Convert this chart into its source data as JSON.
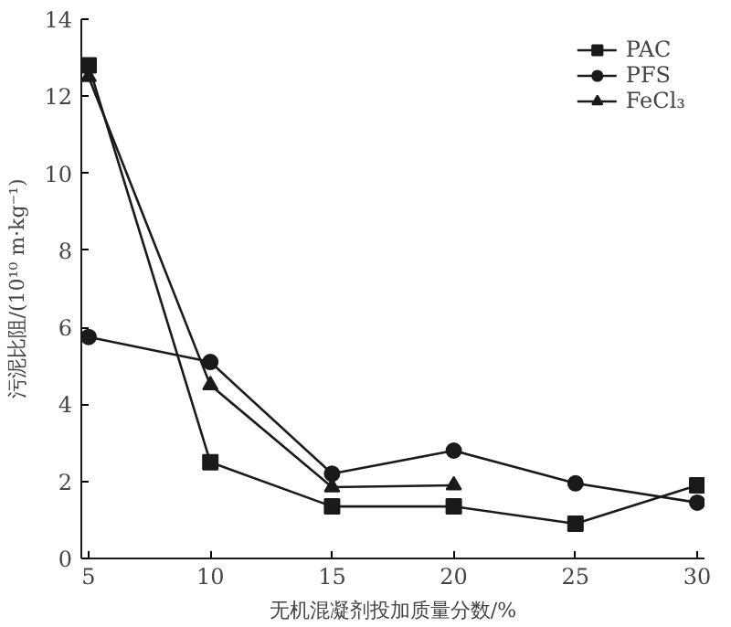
{
  "chart_data": {
    "type": "line",
    "xlabel": "无机混凝剂投加质量分数/%",
    "ylabel": "污泥比阻/(10¹⁰ m·kg⁻¹)",
    "x": [
      5,
      10,
      15,
      20,
      25,
      30
    ],
    "series": [
      {
        "name": "PAC",
        "color": "#1a1a1a",
        "marker": "square",
        "values": [
          12.8,
          2.5,
          1.35,
          1.35,
          0.9,
          1.9
        ]
      },
      {
        "name": "PFS",
        "color": "#1a1a1a",
        "marker": "circle",
        "values": [
          5.75,
          5.1,
          2.2,
          2.8,
          1.95,
          1.45
        ]
      },
      {
        "name": "FeCl₃",
        "color": "#1a1a1a",
        "marker": "triangle",
        "x": [
          5,
          10,
          15,
          20
        ],
        "values": [
          12.5,
          4.5,
          1.85,
          1.9
        ]
      }
    ],
    "xlim": [
      4.7,
      30.3
    ],
    "ylim": [
      0,
      14
    ],
    "xticks": [
      5,
      10,
      15,
      20,
      25,
      30
    ],
    "yticks": [
      0,
      2,
      4,
      6,
      8,
      10,
      12,
      14
    ],
    "grid": false,
    "legend": "top right",
    "line_style": "solid"
  }
}
